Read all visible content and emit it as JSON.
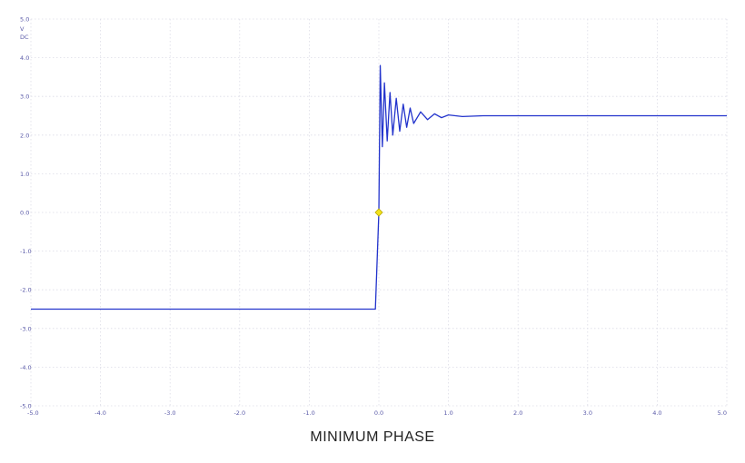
{
  "chart_data": {
    "type": "line",
    "title": "",
    "xlabel": "",
    "ylabel": "",
    "y_units": [
      "V",
      "DC"
    ],
    "xlim": [
      -5.0,
      5.0
    ],
    "ylim": [
      -5.0,
      5.0
    ],
    "x_ticks": [
      "-5.0",
      "-4.0",
      "-3.0",
      "-2.0",
      "-1.0",
      "0.0",
      "1.0",
      "2.0",
      "3.0",
      "4.0",
      "5.0"
    ],
    "y_ticks": [
      "5.0",
      "4.0",
      "3.0",
      "2.0",
      "1.0",
      "0.0",
      "-1.0",
      "-2.0",
      "-3.0",
      "-4.0",
      "-5.0"
    ],
    "grid": true,
    "series": [
      {
        "color": "#2233cc",
        "points": [
          [
            -5.0,
            -2.5
          ],
          [
            -0.05,
            -2.5
          ],
          [
            0.0,
            0.0
          ],
          [
            0.02,
            3.8
          ],
          [
            0.05,
            1.7
          ],
          [
            0.08,
            3.35
          ],
          [
            0.12,
            1.85
          ],
          [
            0.16,
            3.1
          ],
          [
            0.2,
            2.0
          ],
          [
            0.25,
            2.95
          ],
          [
            0.3,
            2.1
          ],
          [
            0.35,
            2.8
          ],
          [
            0.4,
            2.2
          ],
          [
            0.45,
            2.7
          ],
          [
            0.5,
            2.3
          ],
          [
            0.6,
            2.6
          ],
          [
            0.7,
            2.4
          ],
          [
            0.8,
            2.55
          ],
          [
            0.9,
            2.45
          ],
          [
            1.0,
            2.52
          ],
          [
            1.2,
            2.48
          ],
          [
            1.5,
            2.5
          ],
          [
            5.0,
            2.5
          ]
        ]
      }
    ],
    "marker": {
      "x": 0.0,
      "y": 0.0,
      "color": "#f2e21c"
    }
  },
  "caption": "MINIMUM  PHASE"
}
